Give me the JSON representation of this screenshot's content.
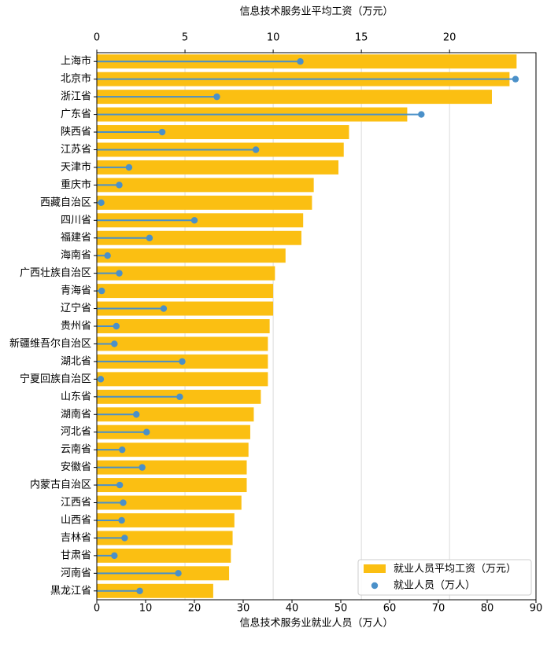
{
  "chart_data": {
    "type": "bar",
    "orientation": "horizontal",
    "categories": [
      "上海市",
      "北京市",
      "浙江省",
      "广东省",
      "陕西省",
      "江苏省",
      "天津市",
      "重庆市",
      "西藏自治区",
      "四川省",
      "福建省",
      "海南省",
      "广西壮族自治区",
      "青海省",
      "辽宁省",
      "贵州省",
      "新疆维吾尔自治区",
      "湖北省",
      "宁夏回族自治区",
      "山东省",
      "湖南省",
      "河北省",
      "云南省",
      "安徽省",
      "内蒙古自治区",
      "江西省",
      "山西省",
      "吉林省",
      "甘肃省",
      "河南省",
      "黑龙江省"
    ],
    "series": [
      {
        "name": "就业人员平均工资（万元）",
        "axis": "top",
        "color": "#FBBF12",
        "values": [
          23.8,
          23.4,
          22.4,
          17.6,
          14.3,
          14.0,
          13.7,
          12.3,
          12.2,
          11.7,
          11.6,
          10.7,
          10.1,
          10.0,
          10.0,
          9.8,
          9.7,
          9.7,
          9.7,
          9.3,
          8.9,
          8.7,
          8.6,
          8.5,
          8.5,
          8.2,
          7.8,
          7.7,
          7.6,
          7.5,
          6.6
        ]
      },
      {
        "name": "就业人员（万人）",
        "axis": "bottom",
        "color": "#4A90C9",
        "values": [
          41.7,
          85.8,
          24.6,
          66.5,
          13.4,
          32.6,
          6.6,
          4.6,
          0.9,
          20.0,
          10.8,
          2.2,
          4.6,
          1.0,
          13.7,
          4.0,
          3.6,
          17.5,
          0.8,
          17.0,
          8.1,
          10.2,
          5.2,
          9.3,
          4.7,
          5.4,
          5.1,
          5.7,
          3.6,
          16.7,
          8.8
        ]
      }
    ],
    "x_top": {
      "label": "信息技术服务业平均工资（万元）",
      "ticks": [
        0,
        5,
        10,
        15,
        20
      ],
      "range": [
        0,
        24.9
      ]
    },
    "x_bottom": {
      "label": "信息技术服务业就业人员（万人）",
      "ticks": [
        0,
        10,
        20,
        30,
        40,
        50,
        60,
        70,
        80,
        90
      ],
      "range": [
        0,
        90
      ]
    },
    "grid": "vertical",
    "legend_position": "lower-right"
  }
}
